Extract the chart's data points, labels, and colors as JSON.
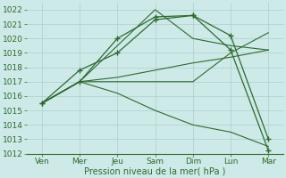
{
  "xlabel": "Pression niveau de la mer( hPa )",
  "bg_color": "#ceeae8",
  "line_color": "#2d6a2d",
  "grid_color": "#aacfcc",
  "ylim": [
    1012,
    1022.5
  ],
  "ytick_min": 1012,
  "ytick_max": 1022,
  "x_labels": [
    "Ven",
    "Mer",
    "Jeu",
    "Sam",
    "Dim",
    "Lun",
    "Mar"
  ],
  "x_positions": [
    0,
    1,
    2,
    3,
    4,
    5,
    6
  ],
  "zigzag": [
    1015.5,
    1017.0,
    1020.0,
    1021.5,
    1021.6,
    1019.2,
    1012.2
  ],
  "straight_lines": [
    [
      1015.5,
      1017.0,
      1019.5,
      1022.0,
      1020.0,
      1019.5,
      1019.2
    ],
    [
      1015.5,
      1017.0,
      1017.0,
      1017.0,
      1017.0,
      1019.0,
      1020.4
    ],
    [
      1015.5,
      1017.0,
      1016.2,
      1015.0,
      1014.0,
      1013.5,
      1012.5
    ],
    [
      1015.5,
      1017.0,
      1017.3,
      1017.8,
      1018.3,
      1018.7,
      1019.2
    ]
  ],
  "marker_line": [
    1015.5,
    1017.8,
    1019.0,
    1021.3,
    1021.6,
    1020.2,
    1013.0
  ]
}
